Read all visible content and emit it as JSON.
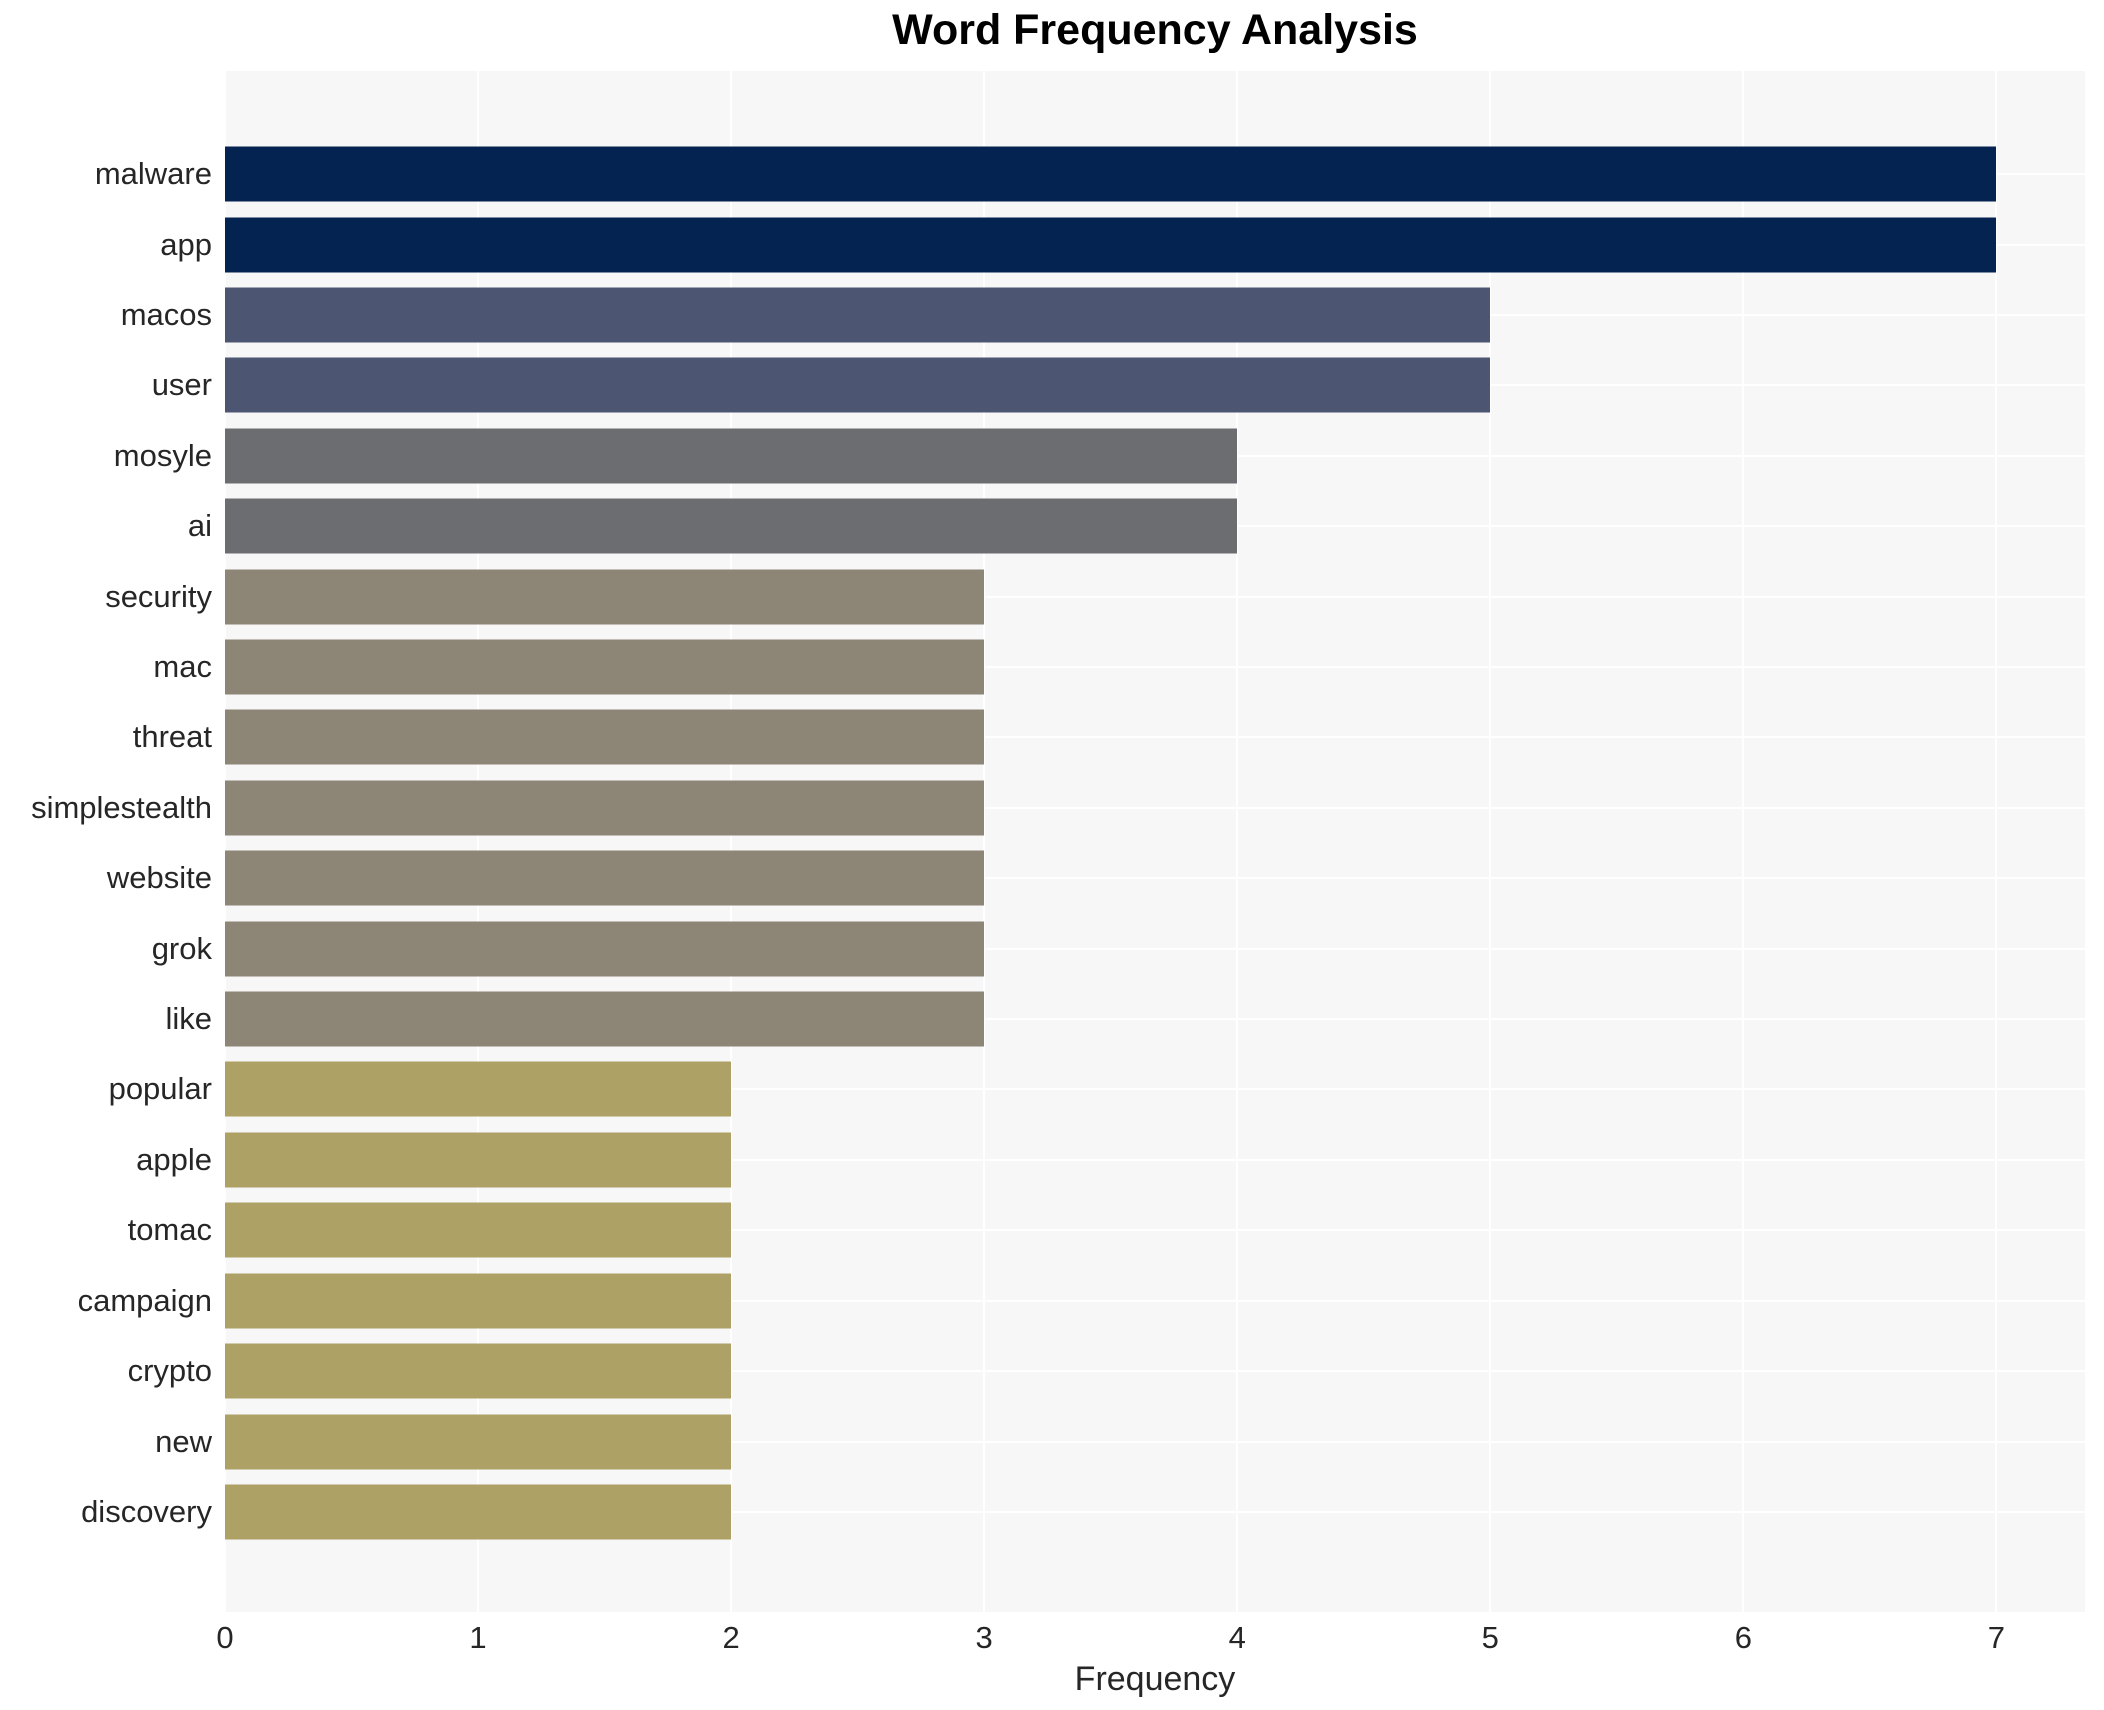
{
  "title": "Word Frequency Analysis",
  "chart_data": {
    "type": "bar",
    "orientation": "horizontal",
    "title": "Word Frequency Analysis",
    "xlabel": "Frequency",
    "ylabel": "",
    "categories": [
      "malware",
      "app",
      "macos",
      "user",
      "mosyle",
      "ai",
      "security",
      "mac",
      "threat",
      "simplestealth",
      "website",
      "grok",
      "like",
      "popular",
      "apple",
      "tomac",
      "campaign",
      "crypto",
      "new",
      "discovery"
    ],
    "values": [
      7,
      7,
      5,
      5,
      4,
      4,
      3,
      3,
      3,
      3,
      3,
      3,
      3,
      2,
      2,
      2,
      2,
      2,
      2,
      2
    ],
    "bar_colors": [
      "#042350",
      "#042350",
      "#4c5571",
      "#4c5571",
      "#6c6d70",
      "#6c6d70",
      "#8d8677",
      "#8d8677",
      "#8d8677",
      "#8d8677",
      "#8d8677",
      "#8d8677",
      "#8d8677",
      "#aea165",
      "#aea165",
      "#aea165",
      "#aea165",
      "#aea165",
      "#aea165",
      "#aea165"
    ],
    "value_color_scale": {
      "7": "#042350",
      "5": "#4c5571",
      "4": "#6c6d70",
      "3": "#8d8677",
      "2": "#aea165"
    },
    "x_ticks": [
      0,
      1,
      2,
      3,
      4,
      5,
      6,
      7
    ],
    "xlim": [
      0,
      7.35
    ],
    "grid": "on",
    "gridline_color": "#ffffff",
    "panel_bg": "#f7f7f7",
    "figure_bg": "#ffffff",
    "legend": "none"
  }
}
